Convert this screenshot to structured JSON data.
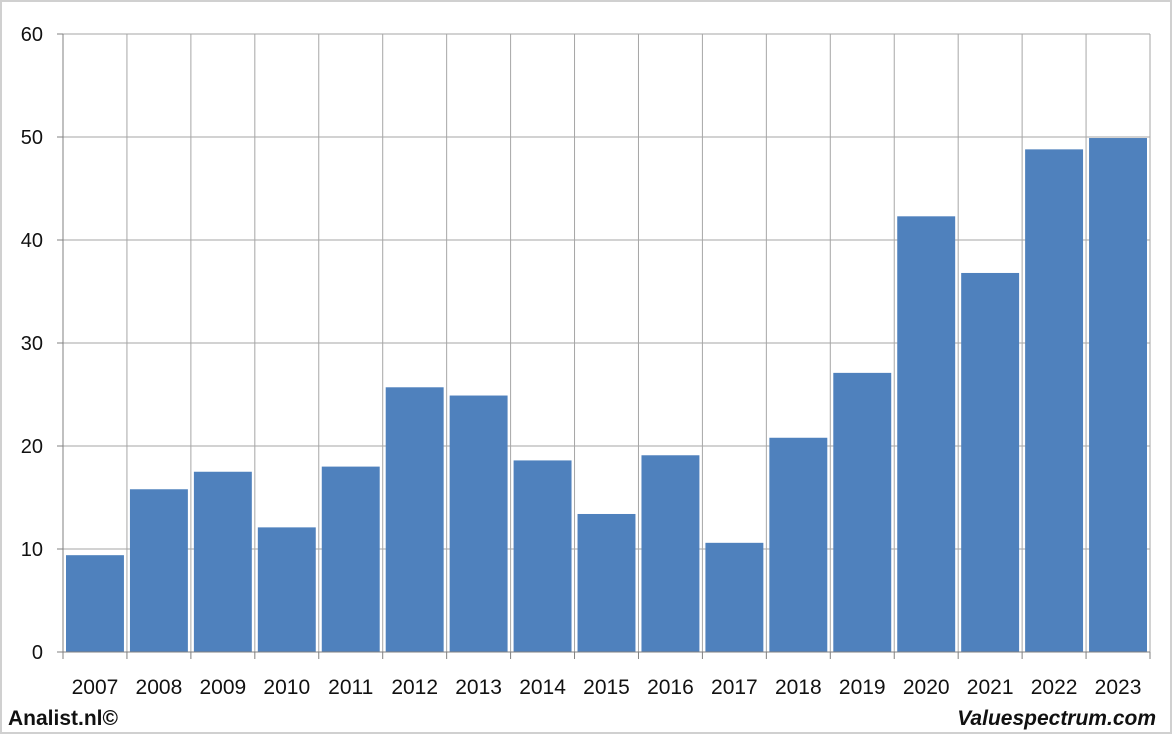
{
  "chart_data": {
    "type": "bar",
    "categories": [
      "2007",
      "2008",
      "2009",
      "2010",
      "2011",
      "2012",
      "2013",
      "2014",
      "2015",
      "2016",
      "2017",
      "2018",
      "2019",
      "2020",
      "2021",
      "2022",
      "2023"
    ],
    "values": [
      9.4,
      15.8,
      17.5,
      12.1,
      18.0,
      25.7,
      24.9,
      18.6,
      13.4,
      19.1,
      10.6,
      20.8,
      27.1,
      42.3,
      36.8,
      48.8,
      49.9
    ],
    "yticks": [
      "0",
      "10",
      "20",
      "30",
      "40",
      "50",
      "60"
    ],
    "ylim": [
      0,
      60
    ],
    "grid": true,
    "bar_color": "#4f81bd",
    "grid_color": "#a6a6a6"
  },
  "footer": {
    "left": "Analist.nl©",
    "right": "Valuespectrum.com"
  }
}
